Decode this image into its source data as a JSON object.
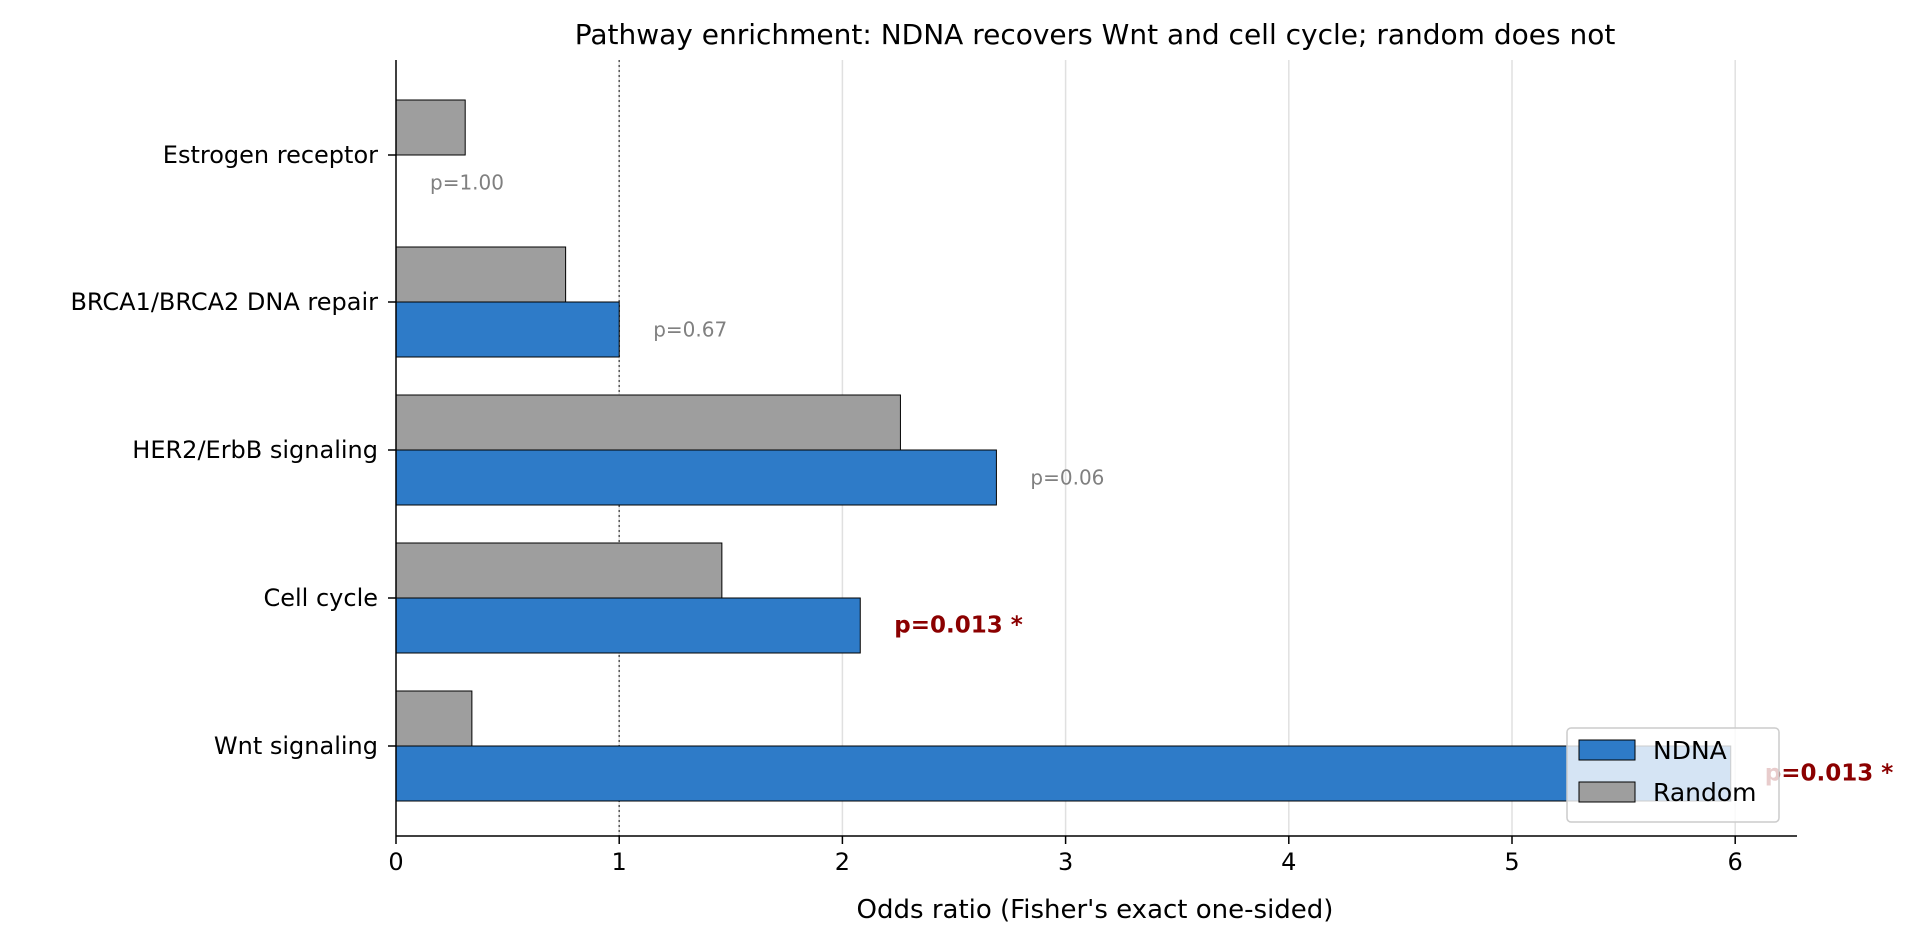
{
  "chart_data": {
    "type": "bar",
    "orientation": "horizontal",
    "title": "Pathway enrichment: NDNA recovers Wnt and cell cycle; random does not",
    "xlabel": "Odds ratio (Fisher's exact one-sided)",
    "ylabel": "",
    "xlim": [
      0,
      6.27
    ],
    "xticks": [
      0,
      1,
      2,
      3,
      4,
      5,
      6
    ],
    "reference_line": 1,
    "grid": "x",
    "legend_position": "bottom-right",
    "categories": [
      "Estrogen receptor",
      "BRCA1/BRCA2 DNA repair",
      "HER2/ErbB signaling",
      "Cell cycle",
      "Wnt signaling"
    ],
    "series": [
      {
        "name": "NDNA",
        "color": "#2e7bc8",
        "values": [
          0,
          1.0,
          2.69,
          2.08,
          5.98
        ]
      },
      {
        "name": "Random",
        "color": "#9e9e9e",
        "values": [
          0.31,
          0.76,
          2.26,
          1.46,
          0.34
        ]
      }
    ],
    "annotations": [
      {
        "text": "p=1.00",
        "significant": false
      },
      {
        "text": "p=0.67",
        "significant": false
      },
      {
        "text": "p=0.06",
        "significant": false
      },
      {
        "text": "p=0.013 *",
        "significant": true
      },
      {
        "text": "p=0.013 *",
        "significant": true
      }
    ],
    "colors": {
      "significant": "#8b0000",
      "non_significant": "#808080"
    }
  }
}
